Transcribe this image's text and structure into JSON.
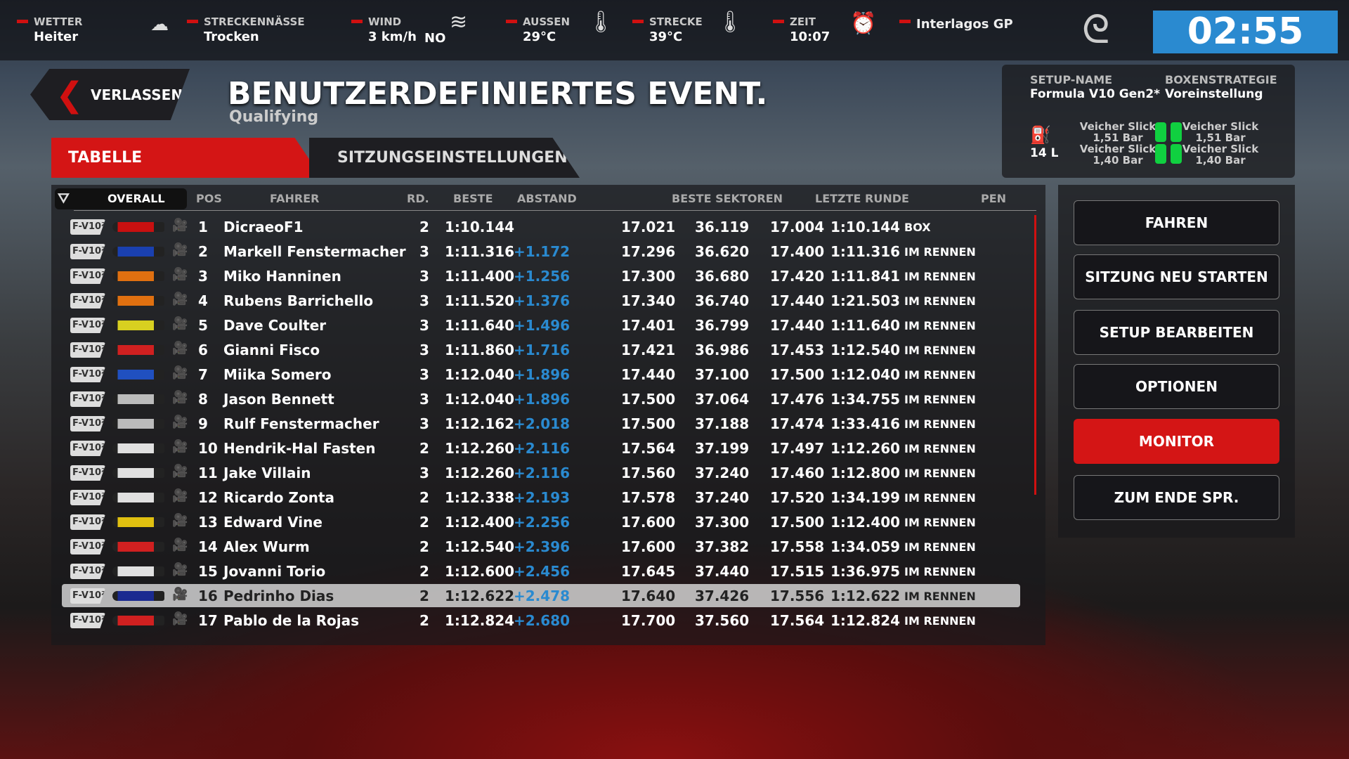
{
  "topbar": {
    "items": [
      {
        "label": "WETTER",
        "value": "Heiter",
        "icon": "cloud-icon"
      },
      {
        "label": "STRECKENNÄSSE",
        "value": "Trocken"
      },
      {
        "label": "WIND",
        "value": "3 km/h",
        "dir": "NO",
        "icon": "wind-icon"
      },
      {
        "label": "AUSSEN",
        "value": "29°C",
        "icon": "thermometer-icon"
      },
      {
        "label": "STRECKE",
        "value": "39°C",
        "icon": "thermometer-icon"
      },
      {
        "label": "ZEIT",
        "value": "10:07",
        "icon": "alarm-clock-icon"
      }
    ],
    "track": "Interlagos GP",
    "timer": "02:55",
    "accent": "#d01010",
    "timer_color": "#2a8ad0"
  },
  "back_label": "VERLASSEN",
  "title": "BENUTZERDEFINIERTES EVENT.",
  "subtitle": "Qualifying",
  "tabs": [
    "TABELLE",
    "SITZUNGSEINSTELLUNGEN"
  ],
  "setup": {
    "name_label": "SETUP-NAME",
    "name": "Formula V10 Gen2*",
    "strategy_label": "BOXENSTRATEGIE",
    "strategy": "Voreinstellung",
    "fuel": "14 L",
    "tyres": [
      {
        "compound": "Veicher Slick",
        "pressure": "1,51 Bar"
      },
      {
        "compound": "Veicher Slick",
        "pressure": "1,51 Bar"
      },
      {
        "compound": "Veicher Slick",
        "pressure": "1,40 Bar"
      },
      {
        "compound": "Veicher Slick",
        "pressure": "1,40 Bar"
      }
    ],
    "tyre_color": "#10d040"
  },
  "table": {
    "filter": "OVERALL",
    "headers": [
      "POS",
      "FAHRER",
      "RD.",
      "BESTE",
      "ABSTAND",
      "BESTE SEKTOREN",
      "LETZTE RUNDE",
      "PEN"
    ],
    "class_badge": "F-V10²",
    "rows": [
      {
        "pos": "1",
        "name": "DicraeoF1",
        "rd": "2",
        "best": "1:10.144",
        "gap": "",
        "s1": "17.021",
        "s2": "36.119",
        "s3": "17.004",
        "last": "1:10.144",
        "status": "BOX",
        "car": "#c81010"
      },
      {
        "pos": "2",
        "name": "Markell Fenstermacher",
        "rd": "3",
        "best": "1:11.316",
        "gap": "+1.172",
        "s1": "17.296",
        "s2": "36.620",
        "s3": "17.400",
        "last": "1:11.316",
        "status": "IM RENNEN",
        "car": "#1a40b0"
      },
      {
        "pos": "3",
        "name": "Miko Hanninen",
        "rd": "3",
        "best": "1:11.400",
        "gap": "+1.256",
        "s1": "17.300",
        "s2": "36.680",
        "s3": "17.420",
        "last": "1:11.841",
        "status": "IM RENNEN",
        "car": "#e07010"
      },
      {
        "pos": "4",
        "name": "Rubens Barrichello",
        "rd": "3",
        "best": "1:11.520",
        "gap": "+1.376",
        "s1": "17.340",
        "s2": "36.740",
        "s3": "17.440",
        "last": "1:21.503",
        "status": "IM RENNEN",
        "car": "#e07010"
      },
      {
        "pos": "5",
        "name": "Dave Coulter",
        "rd": "3",
        "best": "1:11.640",
        "gap": "+1.496",
        "s1": "17.401",
        "s2": "36.799",
        "s3": "17.440",
        "last": "1:11.640",
        "status": "IM RENNEN",
        "car": "#d8d020"
      },
      {
        "pos": "6",
        "name": "Gianni Fisco",
        "rd": "3",
        "best": "1:11.860",
        "gap": "+1.716",
        "s1": "17.421",
        "s2": "36.986",
        "s3": "17.453",
        "last": "1:12.540",
        "status": "IM RENNEN",
        "car": "#d02020"
      },
      {
        "pos": "7",
        "name": "Miika Somero",
        "rd": "3",
        "best": "1:12.040",
        "gap": "+1.896",
        "s1": "17.440",
        "s2": "37.100",
        "s3": "17.500",
        "last": "1:12.040",
        "status": "IM RENNEN",
        "car": "#2050c0"
      },
      {
        "pos": "8",
        "name": "Jason Bennett",
        "rd": "3",
        "best": "1:12.040",
        "gap": "+1.896",
        "s1": "17.500",
        "s2": "37.064",
        "s3": "17.476",
        "last": "1:34.755",
        "status": "IM RENNEN",
        "car": "#bbbbbb"
      },
      {
        "pos": "9",
        "name": "Rulf Fenstermacher",
        "rd": "3",
        "best": "1:12.162",
        "gap": "+2.018",
        "s1": "17.500",
        "s2": "37.188",
        "s3": "17.474",
        "last": "1:33.416",
        "status": "IM RENNEN",
        "car": "#bbbbbb"
      },
      {
        "pos": "10",
        "name": "Hendrik-Hal Fasten",
        "rd": "2",
        "best": "1:12.260",
        "gap": "+2.116",
        "s1": "17.564",
        "s2": "37.199",
        "s3": "17.497",
        "last": "1:12.260",
        "status": "IM RENNEN",
        "car": "#e0e0e0"
      },
      {
        "pos": "11",
        "name": "Jake Villain",
        "rd": "3",
        "best": "1:12.260",
        "gap": "+2.116",
        "s1": "17.560",
        "s2": "37.240",
        "s3": "17.460",
        "last": "1:12.800",
        "status": "IM RENNEN",
        "car": "#e0e0e0"
      },
      {
        "pos": "12",
        "name": "Ricardo Zonta",
        "rd": "2",
        "best": "1:12.338",
        "gap": "+2.193",
        "s1": "17.578",
        "s2": "37.240",
        "s3": "17.520",
        "last": "1:34.199",
        "status": "IM RENNEN",
        "car": "#e0e0e0"
      },
      {
        "pos": "13",
        "name": "Edward Vine",
        "rd": "2",
        "best": "1:12.400",
        "gap": "+2.256",
        "s1": "17.600",
        "s2": "37.300",
        "s3": "17.500",
        "last": "1:12.400",
        "status": "IM RENNEN",
        "car": "#e0c010"
      },
      {
        "pos": "14",
        "name": "Alex Wurm",
        "rd": "2",
        "best": "1:12.540",
        "gap": "+2.396",
        "s1": "17.600",
        "s2": "37.382",
        "s3": "17.558",
        "last": "1:34.059",
        "status": "IM RENNEN",
        "car": "#d02020"
      },
      {
        "pos": "15",
        "name": "Jovanni Torio",
        "rd": "2",
        "best": "1:12.600",
        "gap": "+2.456",
        "s1": "17.645",
        "s2": "37.440",
        "s3": "17.515",
        "last": "1:36.975",
        "status": "IM RENNEN",
        "car": "#e0e0e0"
      },
      {
        "pos": "16",
        "name": "Pedrinho Dias",
        "rd": "2",
        "best": "1:12.622",
        "gap": "+2.478",
        "s1": "17.640",
        "s2": "37.426",
        "s3": "17.556",
        "last": "1:12.622",
        "status": "IM RENNEN",
        "car": "#1a2a90",
        "selected": true
      },
      {
        "pos": "17",
        "name": "Pablo de la Rojas",
        "rd": "2",
        "best": "1:12.824",
        "gap": "+2.680",
        "s1": "17.700",
        "s2": "37.560",
        "s3": "17.564",
        "last": "1:12.824",
        "status": "IM RENNEN",
        "car": "#d02020"
      }
    ]
  },
  "actions": [
    "FAHREN",
    "SITZUNG NEU STARTEN",
    "SETUP BEARBEITEN",
    "OPTIONEN",
    "MONITOR",
    "ZUM ENDE SPR."
  ]
}
